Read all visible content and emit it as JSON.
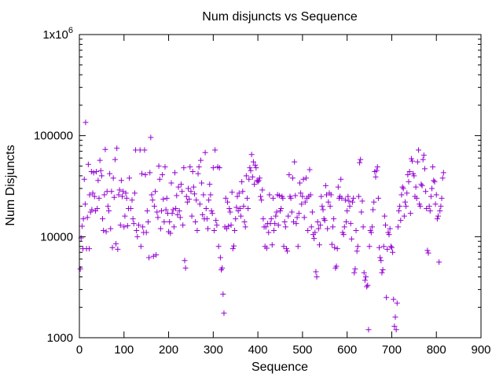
{
  "chart_data": {
    "type": "scatter",
    "title": "Num disjuncts vs Sequence",
    "xlabel": "Sequence",
    "ylabel": "Num Disjuncts",
    "xlim": [
      0,
      900
    ],
    "ylim": [
      1000,
      1000000
    ],
    "yscale": "log",
    "x_ticks": [
      0,
      100,
      200,
      300,
      400,
      500,
      600,
      700,
      800,
      900
    ],
    "x_tick_labels": [
      "0",
      "100",
      "200",
      "300",
      "400",
      "500",
      "600",
      "700",
      "800",
      "900"
    ],
    "y_ticks": [
      1000,
      10000,
      100000,
      1000000
    ],
    "y_tick_labels": [
      "1000",
      "10000",
      "100000",
      "1x10"
    ],
    "y_top_label_exponent": "6",
    "grid": false,
    "legend": "none",
    "marker": "+",
    "color": "#9400d3",
    "points": [
      [
        2,
        4800
      ],
      [
        4,
        9700
      ],
      [
        6,
        12700
      ],
      [
        8,
        7600
      ],
      [
        9,
        15000
      ],
      [
        11,
        37000
      ],
      [
        13,
        21000
      ],
      [
        14,
        135000
      ],
      [
        16,
        7600
      ],
      [
        18,
        15500
      ],
      [
        20,
        52000
      ],
      [
        22,
        7600
      ],
      [
        23,
        26000
      ],
      [
        25,
        17500
      ],
      [
        27,
        44000
      ],
      [
        28,
        18500
      ],
      [
        30,
        27000
      ],
      [
        32,
        43000
      ],
      [
        34,
        25000
      ],
      [
        36,
        18000
      ],
      [
        38,
        44000
      ],
      [
        40,
        19000
      ],
      [
        42,
        36000
      ],
      [
        44,
        24000
      ],
      [
        46,
        57000
      ],
      [
        48,
        45000
      ],
      [
        50,
        40000
      ],
      [
        52,
        15000
      ],
      [
        54,
        11500
      ],
      [
        56,
        26000
      ],
      [
        58,
        73000
      ],
      [
        60,
        11200
      ],
      [
        62,
        28000
      ],
      [
        64,
        20000
      ],
      [
        66,
        18000
      ],
      [
        68,
        42000
      ],
      [
        70,
        12000
      ],
      [
        72,
        28000
      ],
      [
        74,
        7800
      ],
      [
        76,
        38000
      ],
      [
        78,
        24500
      ],
      [
        80,
        58000
      ],
      [
        82,
        8500
      ],
      [
        84,
        75000
      ],
      [
        86,
        7500
      ],
      [
        88,
        26000
      ],
      [
        90,
        29000
      ],
      [
        92,
        13000
      ],
      [
        94,
        36000
      ],
      [
        96,
        25000
      ],
      [
        98,
        28000
      ],
      [
        100,
        12500
      ],
      [
        102,
        16000
      ],
      [
        104,
        27000
      ],
      [
        106,
        24000
      ],
      [
        108,
        12800
      ],
      [
        110,
        19000
      ],
      [
        112,
        38000
      ],
      [
        115,
        19000
      ],
      [
        118,
        23000
      ],
      [
        120,
        15000
      ],
      [
        122,
        13500
      ],
      [
        124,
        27000
      ],
      [
        126,
        72000
      ],
      [
        128,
        11500
      ],
      [
        130,
        10000
      ],
      [
        133,
        13000
      ],
      [
        136,
        72000
      ],
      [
        138,
        8000
      ],
      [
        140,
        42000
      ],
      [
        142,
        12500
      ],
      [
        144,
        11000
      ],
      [
        146,
        72000
      ],
      [
        148,
        41000
      ],
      [
        150,
        11000
      ],
      [
        152,
        18000
      ],
      [
        154,
        14000
      ],
      [
        156,
        6200
      ],
      [
        158,
        43000
      ],
      [
        160,
        96000
      ],
      [
        162,
        26000
      ],
      [
        164,
        23000
      ],
      [
        166,
        6400
      ],
      [
        168,
        20000
      ],
      [
        170,
        28000
      ],
      [
        172,
        6600
      ],
      [
        174,
        17500
      ],
      [
        176,
        15500
      ],
      [
        178,
        50000
      ],
      [
        180,
        37000
      ],
      [
        182,
        12000
      ],
      [
        184,
        18000
      ],
      [
        186,
        41000
      ],
      [
        188,
        23500
      ],
      [
        190,
        14000
      ],
      [
        192,
        49000
      ],
      [
        194,
        18500
      ],
      [
        196,
        24000
      ],
      [
        198,
        17000
      ],
      [
        200,
        11200
      ],
      [
        202,
        14000
      ],
      [
        204,
        10800
      ],
      [
        206,
        34000
      ],
      [
        208,
        17000
      ],
      [
        210,
        18500
      ],
      [
        212,
        12500
      ],
      [
        214,
        43000
      ],
      [
        216,
        19000
      ],
      [
        218,
        25500
      ],
      [
        220,
        16500
      ],
      [
        222,
        31000
      ],
      [
        224,
        18000
      ],
      [
        226,
        15500
      ],
      [
        228,
        33000
      ],
      [
        230,
        28000
      ],
      [
        232,
        13000
      ],
      [
        234,
        48000
      ],
      [
        236,
        5800
      ],
      [
        238,
        4900
      ],
      [
        240,
        25000
      ],
      [
        242,
        22000
      ],
      [
        244,
        30000
      ],
      [
        246,
        23500
      ],
      [
        248,
        49000
      ],
      [
        250,
        28000
      ],
      [
        252,
        16000
      ],
      [
        254,
        44000
      ],
      [
        256,
        31000
      ],
      [
        258,
        26500
      ],
      [
        260,
        14000
      ],
      [
        262,
        23000
      ],
      [
        264,
        11500
      ],
      [
        266,
        42000
      ],
      [
        268,
        49000
      ],
      [
        270,
        21000
      ],
      [
        272,
        57000
      ],
      [
        274,
        34000
      ],
      [
        276,
        16500
      ],
      [
        278,
        26000
      ],
      [
        280,
        15000
      ],
      [
        282,
        68000
      ],
      [
        284,
        19000
      ],
      [
        286,
        15000
      ],
      [
        288,
        12000
      ],
      [
        290,
        23000
      ],
      [
        292,
        33000
      ],
      [
        294,
        26000
      ],
      [
        296,
        18000
      ],
      [
        298,
        17000
      ],
      [
        300,
        48000
      ],
      [
        302,
        11500
      ],
      [
        304,
        72000
      ],
      [
        306,
        14500
      ],
      [
        308,
        13000
      ],
      [
        310,
        49000
      ],
      [
        312,
        8000
      ],
      [
        314,
        48000
      ],
      [
        316,
        6200
      ],
      [
        318,
        4700
      ],
      [
        320,
        4900
      ],
      [
        322,
        2700
      ],
      [
        324,
        1750
      ],
      [
        326,
        12500
      ],
      [
        328,
        24000
      ],
      [
        330,
        12000
      ],
      [
        332,
        22000
      ],
      [
        334,
        12700
      ],
      [
        336,
        19000
      ],
      [
        338,
        17500
      ],
      [
        340,
        13000
      ],
      [
        342,
        27500
      ],
      [
        344,
        7600
      ],
      [
        346,
        8100
      ],
      [
        348,
        11500
      ],
      [
        350,
        15000
      ],
      [
        352,
        19500
      ],
      [
        354,
        25000
      ],
      [
        356,
        18000
      ],
      [
        358,
        27000
      ],
      [
        360,
        19000
      ],
      [
        362,
        16000
      ],
      [
        364,
        35000
      ],
      [
        366,
        28000
      ],
      [
        368,
        20000
      ],
      [
        370,
        14000
      ],
      [
        372,
        12500
      ],
      [
        374,
        40000
      ],
      [
        376,
        24000
      ],
      [
        378,
        19000
      ],
      [
        380,
        37000
      ],
      [
        382,
        48000
      ],
      [
        384,
        45000
      ],
      [
        386,
        65000
      ],
      [
        388,
        39000
      ],
      [
        390,
        55000
      ],
      [
        392,
        33000
      ],
      [
        394,
        51000
      ],
      [
        396,
        48000
      ],
      [
        398,
        36000
      ],
      [
        400,
        35000
      ],
      [
        402,
        36000
      ],
      [
        404,
        38000
      ],
      [
        406,
        25000
      ],
      [
        408,
        23000
      ],
      [
        410,
        29000
      ],
      [
        412,
        15000
      ],
      [
        414,
        12500
      ],
      [
        416,
        8000
      ],
      [
        418,
        12500
      ],
      [
        420,
        7700
      ],
      [
        422,
        13500
      ],
      [
        424,
        11000
      ],
      [
        426,
        26000
      ],
      [
        428,
        13500
      ],
      [
        430,
        15000
      ],
      [
        432,
        8300
      ],
      [
        434,
        24000
      ],
      [
        436,
        11500
      ],
      [
        438,
        13500
      ],
      [
        440,
        16000
      ],
      [
        442,
        17500
      ],
      [
        444,
        26000
      ],
      [
        446,
        13000
      ],
      [
        448,
        25500
      ],
      [
        450,
        18000
      ],
      [
        452,
        19000
      ],
      [
        454,
        25000
      ],
      [
        456,
        24000
      ],
      [
        458,
        8000
      ],
      [
        460,
        14000
      ],
      [
        462,
        12500
      ],
      [
        464,
        7600
      ],
      [
        466,
        7200
      ],
      [
        468,
        16000
      ],
      [
        470,
        41000
      ],
      [
        472,
        25000
      ],
      [
        474,
        24000
      ],
      [
        476,
        17500
      ],
      [
        478,
        38000
      ],
      [
        480,
        14000
      ],
      [
        482,
        55000
      ],
      [
        484,
        25500
      ],
      [
        486,
        13500
      ],
      [
        488,
        15500
      ],
      [
        490,
        8000
      ],
      [
        492,
        17000
      ],
      [
        494,
        34000
      ],
      [
        496,
        27000
      ],
      [
        498,
        21000
      ],
      [
        500,
        25000
      ],
      [
        502,
        37000
      ],
      [
        504,
        15500
      ],
      [
        506,
        22000
      ],
      [
        508,
        38000
      ],
      [
        510,
        24000
      ],
      [
        512,
        11500
      ],
      [
        514,
        25000
      ],
      [
        516,
        46000
      ],
      [
        518,
        26000
      ],
      [
        520,
        12500
      ],
      [
        522,
        17500
      ],
      [
        524,
        10500
      ],
      [
        526,
        9600
      ],
      [
        528,
        11000
      ],
      [
        530,
        4500
      ],
      [
        532,
        4000
      ],
      [
        534,
        14000
      ],
      [
        536,
        12000
      ],
      [
        538,
        8300
      ],
      [
        540,
        13000
      ],
      [
        542,
        25000
      ],
      [
        544,
        20000
      ],
      [
        546,
        18500
      ],
      [
        548,
        15000
      ],
      [
        550,
        14500
      ],
      [
        552,
        32000
      ],
      [
        554,
        26000
      ],
      [
        556,
        12000
      ],
      [
        558,
        22000
      ],
      [
        560,
        27000
      ],
      [
        562,
        20000
      ],
      [
        564,
        26000
      ],
      [
        566,
        8400
      ],
      [
        568,
        12500
      ],
      [
        570,
        15000
      ],
      [
        572,
        7800
      ],
      [
        574,
        4900
      ],
      [
        576,
        5100
      ],
      [
        578,
        7600
      ],
      [
        580,
        31000
      ],
      [
        582,
        24000
      ],
      [
        584,
        25000
      ],
      [
        586,
        37000
      ],
      [
        588,
        24000
      ],
      [
        590,
        11000
      ],
      [
        592,
        10500
      ],
      [
        594,
        12500
      ],
      [
        596,
        23000
      ],
      [
        598,
        14000
      ],
      [
        600,
        18000
      ],
      [
        602,
        25000
      ],
      [
        604,
        22500
      ],
      [
        606,
        20000
      ],
      [
        608,
        13500
      ],
      [
        610,
        9500
      ],
      [
        612,
        22000
      ],
      [
        614,
        24000
      ],
      [
        616,
        4400
      ],
      [
        618,
        4800
      ],
      [
        620,
        11500
      ],
      [
        622,
        7200
      ],
      [
        624,
        8000
      ],
      [
        626,
        25000
      ],
      [
        628,
        54000
      ],
      [
        630,
        58000
      ],
      [
        632,
        17500
      ],
      [
        634,
        22500
      ],
      [
        636,
        12500
      ],
      [
        638,
        4400
      ],
      [
        640,
        3700
      ],
      [
        642,
        4000
      ],
      [
        644,
        3200
      ],
      [
        646,
        3300
      ],
      [
        648,
        1200
      ],
      [
        650,
        8000
      ],
      [
        652,
        11500
      ],
      [
        654,
        11000
      ],
      [
        656,
        12500
      ],
      [
        658,
        18500
      ],
      [
        660,
        22000
      ],
      [
        662,
        44000
      ],
      [
        664,
        39000
      ],
      [
        666,
        45000
      ],
      [
        668,
        49000
      ],
      [
        670,
        24000
      ],
      [
        672,
        7800
      ],
      [
        674,
        6200
      ],
      [
        676,
        5800
      ],
      [
        678,
        4400
      ],
      [
        680,
        4700
      ],
      [
        682,
        8000
      ],
      [
        684,
        16000
      ],
      [
        686,
        13000
      ],
      [
        688,
        2500
      ],
      [
        690,
        7500
      ],
      [
        692,
        11000
      ],
      [
        694,
        10500
      ],
      [
        696,
        12000
      ],
      [
        698,
        8000
      ],
      [
        700,
        7800
      ],
      [
        702,
        7000
      ],
      [
        704,
        2400
      ],
      [
        706,
        1300
      ],
      [
        708,
        1600
      ],
      [
        710,
        1200
      ],
      [
        712,
        2200
      ],
      [
        714,
        12500
      ],
      [
        716,
        18000
      ],
      [
        718,
        20000
      ],
      [
        720,
        14500
      ],
      [
        722,
        26000
      ],
      [
        724,
        31000
      ],
      [
        726,
        30000
      ],
      [
        728,
        16000
      ],
      [
        730,
        22000
      ],
      [
        732,
        20000
      ],
      [
        734,
        27000
      ],
      [
        736,
        41000
      ],
      [
        738,
        35000
      ],
      [
        740,
        44000
      ],
      [
        742,
        17000
      ],
      [
        744,
        59000
      ],
      [
        746,
        56000
      ],
      [
        748,
        42000
      ],
      [
        750,
        40000
      ],
      [
        752,
        25000
      ],
      [
        754,
        31000
      ],
      [
        756,
        24000
      ],
      [
        758,
        55000
      ],
      [
        760,
        72000
      ],
      [
        762,
        21000
      ],
      [
        764,
        20000
      ],
      [
        766,
        33000
      ],
      [
        768,
        32000
      ],
      [
        770,
        58000
      ],
      [
        772,
        64000
      ],
      [
        774,
        47000
      ],
      [
        776,
        28000
      ],
      [
        778,
        19000
      ],
      [
        780,
        7300
      ],
      [
        782,
        6900
      ],
      [
        784,
        20000
      ],
      [
        786,
        18000
      ],
      [
        788,
        25000
      ],
      [
        790,
        30000
      ],
      [
        792,
        49000
      ],
      [
        794,
        36000
      ],
      [
        796,
        35000
      ],
      [
        798,
        21000
      ],
      [
        800,
        26000
      ],
      [
        802,
        15000
      ],
      [
        804,
        16000
      ],
      [
        806,
        5600
      ],
      [
        808,
        18000
      ],
      [
        810,
        20000
      ],
      [
        812,
        24000
      ],
      [
        814,
        38000
      ],
      [
        816,
        43000
      ]
    ]
  }
}
